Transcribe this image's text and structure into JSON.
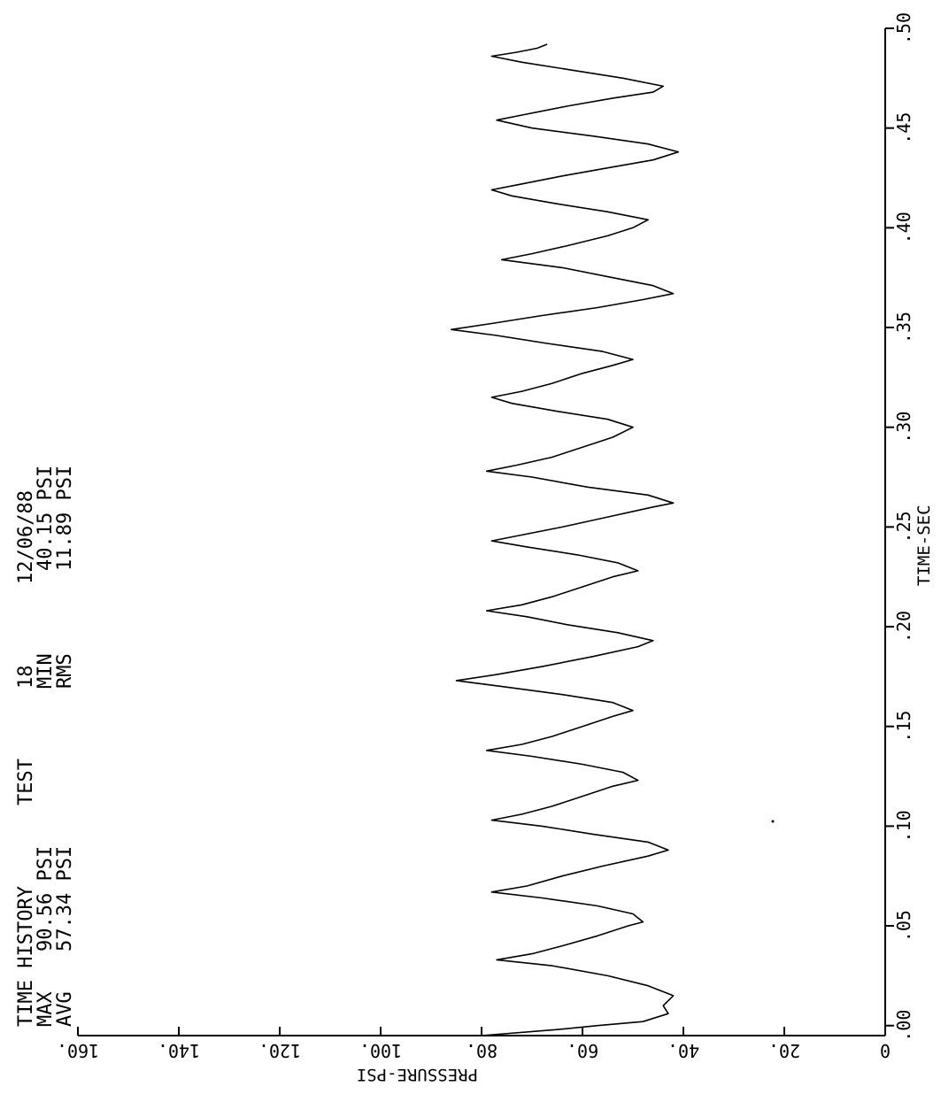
{
  "header": {
    "title": "TIME HISTORY",
    "max_label": "MAX",
    "max_value": "90.56 PSI",
    "avg_label": "AVG",
    "avg_value": "57.34 PSI",
    "test_label": "TEST",
    "test_number": "18",
    "min_label": "MIN",
    "min_value": "40.15 PSI",
    "rms_label": "RMS",
    "rms_value": "11.89 PSI",
    "date": "12/06/88"
  },
  "chart_data": {
    "type": "line",
    "title": "TIME HISTORY",
    "xlabel": "TIME-SEC",
    "ylabel": "PRESSURE-PSI",
    "xlim": [
      -0.005,
      0.5
    ],
    "ylim": [
      0,
      160
    ],
    "x_ticks": [
      ".00",
      ".05",
      ".10",
      ".15",
      ".20",
      ".25",
      ".30",
      ".35",
      ".40",
      ".45",
      ".50"
    ],
    "x_tick_values": [
      0.0,
      0.05,
      0.1,
      0.15,
      0.2,
      0.25,
      0.3,
      0.35,
      0.4,
      0.45,
      0.5
    ],
    "y_ticks": [
      "0",
      "20.",
      "40.",
      "60.",
      "80.",
      "100.",
      "120.",
      "140.",
      "160."
    ],
    "y_tick_values": [
      0,
      20,
      40,
      60,
      80,
      100,
      120,
      140,
      160
    ],
    "grid": false,
    "series": [
      {
        "values": [
          [
            -0.005,
            80
          ],
          [
            -0.002,
            65
          ],
          [
            0.0,
            57
          ],
          [
            0.002,
            48
          ],
          [
            0.006,
            43
          ],
          [
            0.01,
            44
          ],
          [
            0.015,
            42
          ],
          [
            0.02,
            47
          ],
          [
            0.025,
            55
          ],
          [
            0.03,
            66
          ],
          [
            0.033,
            77
          ],
          [
            0.036,
            70
          ],
          [
            0.04,
            64
          ],
          [
            0.045,
            57
          ],
          [
            0.05,
            51
          ],
          [
            0.052,
            48
          ],
          [
            0.056,
            50
          ],
          [
            0.06,
            57
          ],
          [
            0.064,
            68
          ],
          [
            0.067,
            78
          ],
          [
            0.07,
            71
          ],
          [
            0.075,
            64
          ],
          [
            0.08,
            56
          ],
          [
            0.085,
            47
          ],
          [
            0.088,
            43
          ],
          [
            0.092,
            47
          ],
          [
            0.096,
            58
          ],
          [
            0.1,
            68
          ],
          [
            0.103,
            78
          ],
          [
            0.106,
            72
          ],
          [
            0.11,
            66
          ],
          [
            0.115,
            60
          ],
          [
            0.12,
            54
          ],
          [
            0.123,
            49
          ],
          [
            0.127,
            52
          ],
          [
            0.131,
            60
          ],
          [
            0.135,
            70
          ],
          [
            0.138,
            79
          ],
          [
            0.141,
            72
          ],
          [
            0.145,
            66
          ],
          [
            0.15,
            60
          ],
          [
            0.155,
            54
          ],
          [
            0.158,
            50
          ],
          [
            0.162,
            54
          ],
          [
            0.166,
            64
          ],
          [
            0.17,
            76
          ],
          [
            0.173,
            85
          ],
          [
            0.176,
            77
          ],
          [
            0.18,
            68
          ],
          [
            0.185,
            58
          ],
          [
            0.19,
            49
          ],
          [
            0.193,
            46
          ],
          [
            0.197,
            53
          ],
          [
            0.201,
            63
          ],
          [
            0.205,
            71
          ],
          [
            0.208,
            79
          ],
          [
            0.211,
            72
          ],
          [
            0.215,
            66
          ],
          [
            0.22,
            60
          ],
          [
            0.225,
            54
          ],
          [
            0.228,
            49
          ],
          [
            0.232,
            53
          ],
          [
            0.236,
            61
          ],
          [
            0.24,
            71
          ],
          [
            0.243,
            78
          ],
          [
            0.246,
            72
          ],
          [
            0.25,
            64
          ],
          [
            0.255,
            55
          ],
          [
            0.26,
            46
          ],
          [
            0.262,
            42
          ],
          [
            0.266,
            47
          ],
          [
            0.27,
            59
          ],
          [
            0.275,
            70
          ],
          [
            0.278,
            79
          ],
          [
            0.281,
            73
          ],
          [
            0.285,
            66
          ],
          [
            0.29,
            60
          ],
          [
            0.295,
            54
          ],
          [
            0.3,
            50
          ],
          [
            0.304,
            55
          ],
          [
            0.308,
            65
          ],
          [
            0.312,
            74
          ],
          [
            0.315,
            78
          ],
          [
            0.318,
            72
          ],
          [
            0.322,
            66
          ],
          [
            0.327,
            60
          ],
          [
            0.331,
            54
          ],
          [
            0.334,
            50
          ],
          [
            0.338,
            56
          ],
          [
            0.342,
            67
          ],
          [
            0.346,
            77
          ],
          [
            0.349,
            86
          ],
          [
            0.352,
            78
          ],
          [
            0.356,
            68
          ],
          [
            0.36,
            57
          ],
          [
            0.364,
            48
          ],
          [
            0.367,
            42
          ],
          [
            0.371,
            46
          ],
          [
            0.375,
            54
          ],
          [
            0.38,
            64
          ],
          [
            0.384,
            76
          ],
          [
            0.387,
            70
          ],
          [
            0.391,
            63
          ],
          [
            0.396,
            55
          ],
          [
            0.4,
            50
          ],
          [
            0.404,
            47
          ],
          [
            0.408,
            55
          ],
          [
            0.412,
            65
          ],
          [
            0.416,
            74
          ],
          [
            0.419,
            78
          ],
          [
            0.422,
            72
          ],
          [
            0.426,
            64
          ],
          [
            0.43,
            55
          ],
          [
            0.434,
            46
          ],
          [
            0.438,
            41
          ],
          [
            0.442,
            47
          ],
          [
            0.446,
            58
          ],
          [
            0.45,
            70
          ],
          [
            0.454,
            77
          ],
          [
            0.457,
            71
          ],
          [
            0.461,
            63
          ],
          [
            0.465,
            54
          ],
          [
            0.468,
            46
          ],
          [
            0.471,
            44
          ],
          [
            0.475,
            52
          ],
          [
            0.479,
            62
          ],
          [
            0.483,
            72
          ],
          [
            0.486,
            78
          ],
          [
            0.488,
            73
          ],
          [
            0.49,
            69
          ],
          [
            0.492,
            67
          ]
        ]
      }
    ]
  }
}
